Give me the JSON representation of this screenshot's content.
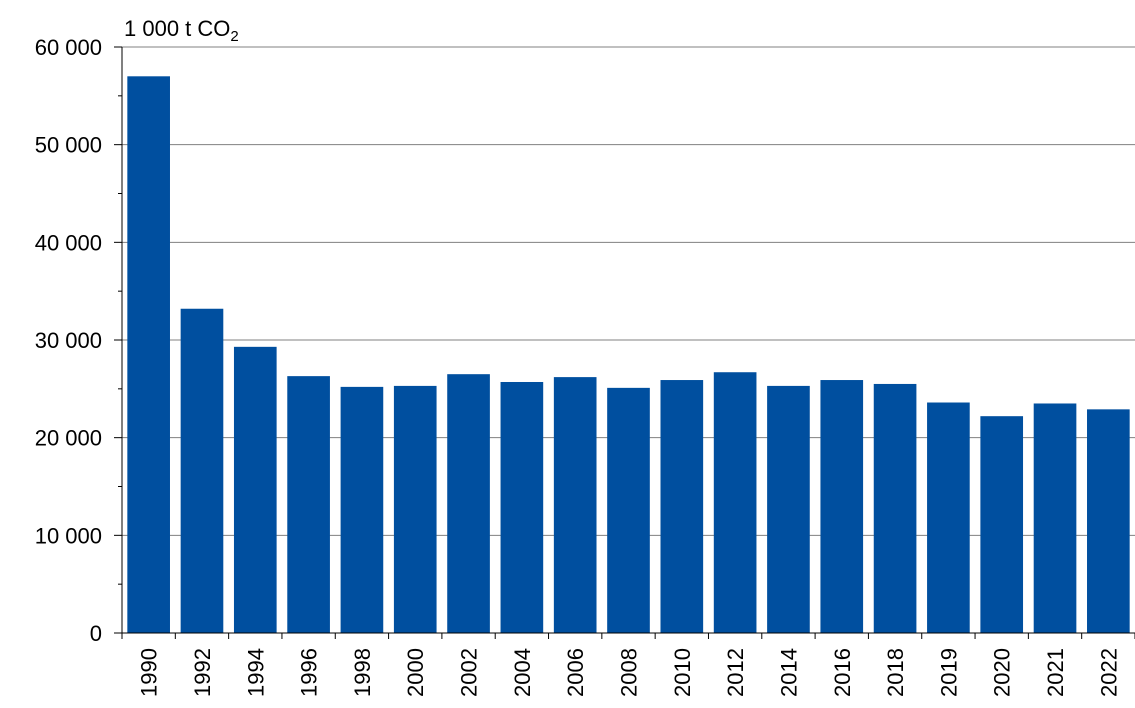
{
  "chart_data": {
    "type": "bar",
    "unit_label": {
      "main": "1 000 t CO",
      "subscript": "2"
    },
    "categories": [
      "1990",
      "1992",
      "1994",
      "1996",
      "1998",
      "2000",
      "2002",
      "2004",
      "2006",
      "2008",
      "2010",
      "2012",
      "2014",
      "2016",
      "2018",
      "2019",
      "2020",
      "2021",
      "2022"
    ],
    "values": [
      57000,
      33200,
      29300,
      26300,
      25200,
      25300,
      26500,
      25700,
      26200,
      25100,
      25900,
      26700,
      25300,
      25900,
      25500,
      23600,
      22200,
      23500,
      22900
    ],
    "yticks": [
      "0",
      "10 000",
      "20 000",
      "30 000",
      "40 000",
      "50 000",
      "60 000"
    ],
    "ylim": [
      0,
      60000
    ],
    "ytick_step": 10000,
    "ytick_minor_step": 5000,
    "grid": true,
    "bar_color": "#004f9f",
    "grid_color": "#808080"
  }
}
